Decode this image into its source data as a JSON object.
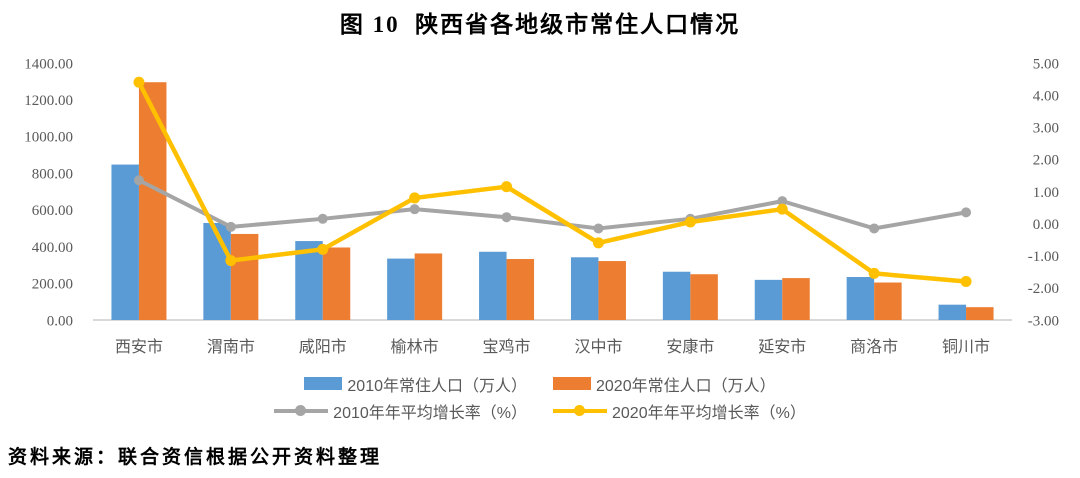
{
  "title": "图 10  陕西省各地级市常住人口情况",
  "source_note": "资料来源：联合资信根据公开资料整理",
  "colors": {
    "bar_2010": "#5B9BD5",
    "bar_2020": "#ED7D31",
    "line_2010": "#A5A5A5",
    "line_2020": "#FFC000",
    "axis_text": "#595959",
    "baseline": "#D9D9D9",
    "background": "#FFFFFF"
  },
  "chart_data": {
    "type": "combo",
    "title": "图 10  陕西省各地级市常住人口情况",
    "grid": false,
    "legend_position": "bottom",
    "categories": [
      "西安市",
      "渭南市",
      "咸阳市",
      "榆林市",
      "宝鸡市",
      "汉中市",
      "安康市",
      "延安市",
      "商洛市",
      "铜川市"
    ],
    "series": [
      {
        "name": "2010年常住人口（万人）",
        "type": "bar",
        "axis": "left",
        "color": "#5B9BD5",
        "values": [
          846.78,
          528.61,
          430.0,
          334.56,
          371.67,
          341.63,
          262.99,
          218.71,
          234.17,
          83.44
        ]
      },
      {
        "name": "2020年常住人口（万人）",
        "type": "bar",
        "axis": "left",
        "color": "#ED7D31",
        "values": [
          1295.29,
          468.87,
          395.0,
          362.48,
          332.18,
          321.1,
          249.32,
          228.28,
          204.14,
          69.84
        ]
      },
      {
        "name": "2010年年平均增长率（%）",
        "type": "line",
        "axis": "right",
        "color": "#A5A5A5",
        "values": [
          1.35,
          -0.1,
          0.15,
          0.45,
          0.2,
          -0.15,
          0.15,
          0.7,
          -0.15,
          0.35
        ]
      },
      {
        "name": "2020年年平均增长率（%）",
        "type": "line",
        "axis": "right",
        "color": "#FFC000",
        "values": [
          4.4,
          -1.15,
          -0.8,
          0.8,
          1.15,
          -0.6,
          0.05,
          0.45,
          -1.55,
          -1.8
        ]
      }
    ],
    "left_axis": {
      "min": 0,
      "max": 1400,
      "step": 200,
      "ticks": [
        {
          "v": 1400,
          "label": "1400.00"
        },
        {
          "v": 1200,
          "label": "1200.00"
        },
        {
          "v": 1000,
          "label": "1000.00"
        },
        {
          "v": 800,
          "label": "800.00"
        },
        {
          "v": 600,
          "label": "600.00"
        },
        {
          "v": 400,
          "label": "400.00"
        },
        {
          "v": 200,
          "label": "200.00"
        },
        {
          "v": 0,
          "label": "0.00"
        }
      ]
    },
    "right_axis": {
      "min": -3,
      "max": 5,
      "step": 1,
      "ticks": [
        {
          "v": 5,
          "label": "5.00"
        },
        {
          "v": 4,
          "label": "4.00"
        },
        {
          "v": 3,
          "label": "3.00"
        },
        {
          "v": 2,
          "label": "2.00"
        },
        {
          "v": 1,
          "label": "1.00"
        },
        {
          "v": 0,
          "label": "0.00"
        },
        {
          "v": -1,
          "label": "-1.00"
        },
        {
          "v": -2,
          "label": "-2.00"
        },
        {
          "v": -3,
          "label": "-3.00"
        }
      ]
    }
  }
}
